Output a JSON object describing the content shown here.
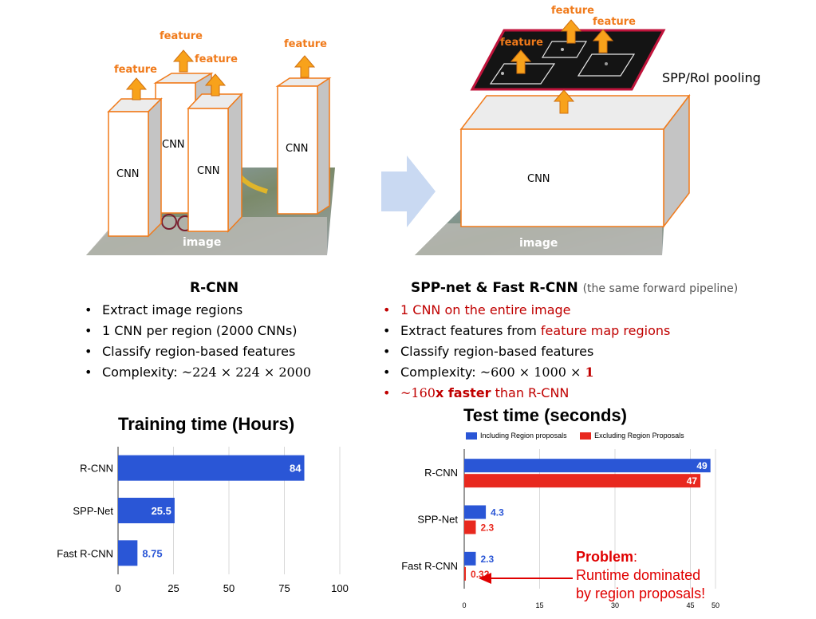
{
  "diagram": {
    "left": {
      "cnn_labels": [
        "CNN",
        "CNN",
        "CNN",
        "CNN"
      ],
      "feature_labels": [
        "feature",
        "feature",
        "feature",
        "feature"
      ],
      "image_label": "image"
    },
    "right": {
      "cnn_label": "CNN",
      "feature_labels": [
        "feature",
        "feature",
        "feature"
      ],
      "image_label": "image",
      "pooling_label": "SPP/RoI pooling"
    },
    "colors": {
      "box_edge": "#f07a1a",
      "arrow": "#f8a21b",
      "transition_arrow": "#c9d9f2",
      "pool_border": "#c0143c"
    }
  },
  "rcnn": {
    "title": "R-CNN",
    "bullets": [
      {
        "text": "Extract image regions"
      },
      {
        "text": "1 CNN per region (2000 CNNs)"
      },
      {
        "text": "Classify region-based features"
      },
      {
        "text": "Complexity: ",
        "math": "~224 × 224 × 2000"
      }
    ]
  },
  "fast": {
    "title": "SPP-net & Fast R-CNN",
    "subtitle": "(the same forward pipeline)",
    "bullets": [
      {
        "text": "1 CNN on the entire image"
      },
      {
        "pre": "Extract features from ",
        "highlight": "feature map regions"
      },
      {
        "text": "Classify region-based features"
      },
      {
        "pre": "Complexity: ",
        "math_a": "~600 × 1000 × ",
        "math_b": "1"
      },
      {
        "math_a": "~160",
        "bold": "x faster",
        "rest": " than R-CNN"
      }
    ]
  },
  "chart_data": [
    {
      "type": "bar",
      "orientation": "horizontal",
      "title": "Training time (Hours)",
      "categories": [
        "R-CNN",
        "SPP-Net",
        "Fast R-CNN"
      ],
      "values": [
        84,
        25.5,
        8.75
      ],
      "value_labels": [
        "84",
        "25.5",
        "8.75"
      ],
      "xlim": [
        0,
        100
      ],
      "xticks": [
        "0",
        "25",
        "50",
        "75",
        "100"
      ],
      "color": "#2a56d6",
      "grid": true
    },
    {
      "type": "bar",
      "orientation": "horizontal",
      "title": "Test time (seconds)",
      "categories": [
        "R-CNN",
        "SPP-Net",
        "Fast R-CNN"
      ],
      "series": [
        {
          "name": "Including Region proposals",
          "values": [
            49,
            4.3,
            2.3
          ],
          "labels": [
            "49",
            "4.3",
            "2.3"
          ],
          "color": "#2a56d6"
        },
        {
          "name": "Excluding Region Proposals",
          "values": [
            47,
            2.3,
            0.32
          ],
          "labels": [
            "47",
            "2.3",
            "0.32"
          ],
          "color": "#e8281e"
        }
      ],
      "xlim": [
        0,
        50
      ],
      "xticks": [
        "0",
        "15",
        "30",
        "45",
        "50"
      ],
      "legend": "top",
      "grid": true
    }
  ],
  "annotation": {
    "problem_bold": "Problem",
    "problem_colon": ":",
    "line2": "Runtime dominated",
    "line3": "by region proposals!",
    "color": "#e00000"
  }
}
